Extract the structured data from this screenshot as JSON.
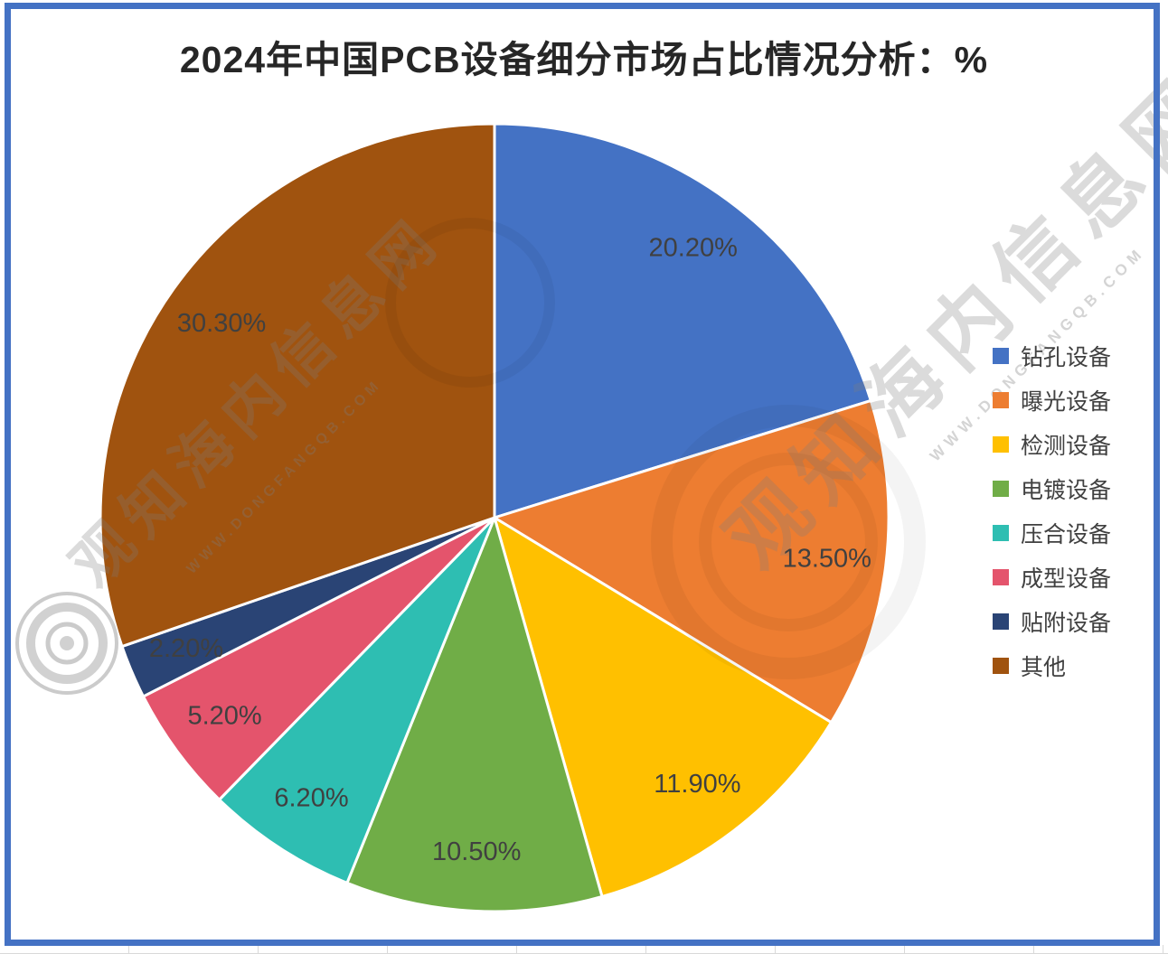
{
  "title": "2024年中国PCB设备细分市场占比情况分析：%",
  "chart_data": {
    "type": "pie",
    "title": "2024年中国PCB设备细分市场占比情况分析：%",
    "categories": [
      "钻孔设备",
      "曝光设备",
      "检测设备",
      "电镀设备",
      "压合设备",
      "成型设备",
      "贴附设备",
      "其他"
    ],
    "values": [
      20.2,
      13.5,
      11.9,
      10.5,
      6.2,
      5.2,
      2.2,
      30.3
    ],
    "data_labels": [
      "20.20%",
      "13.50%",
      "11.90%",
      "10.50%",
      "6.20%",
      "5.20%",
      "2.20%",
      "30.30%"
    ],
    "colors": [
      "#4472C4",
      "#ED7D31",
      "#FFC000",
      "#70AD47",
      "#2EBEB2",
      "#E4546C",
      "#2A4475",
      "#A0530F"
    ],
    "start_angle_deg": 0,
    "direction": "clockwise",
    "legend_position": "right",
    "label_color": "#404040"
  },
  "frame": {
    "border_color": "#4472C4",
    "background": "#FFFFFF"
  },
  "watermark": {
    "site_name": "观知海内信息网",
    "site_url": "WWW.DONGFANGQB.COM"
  }
}
